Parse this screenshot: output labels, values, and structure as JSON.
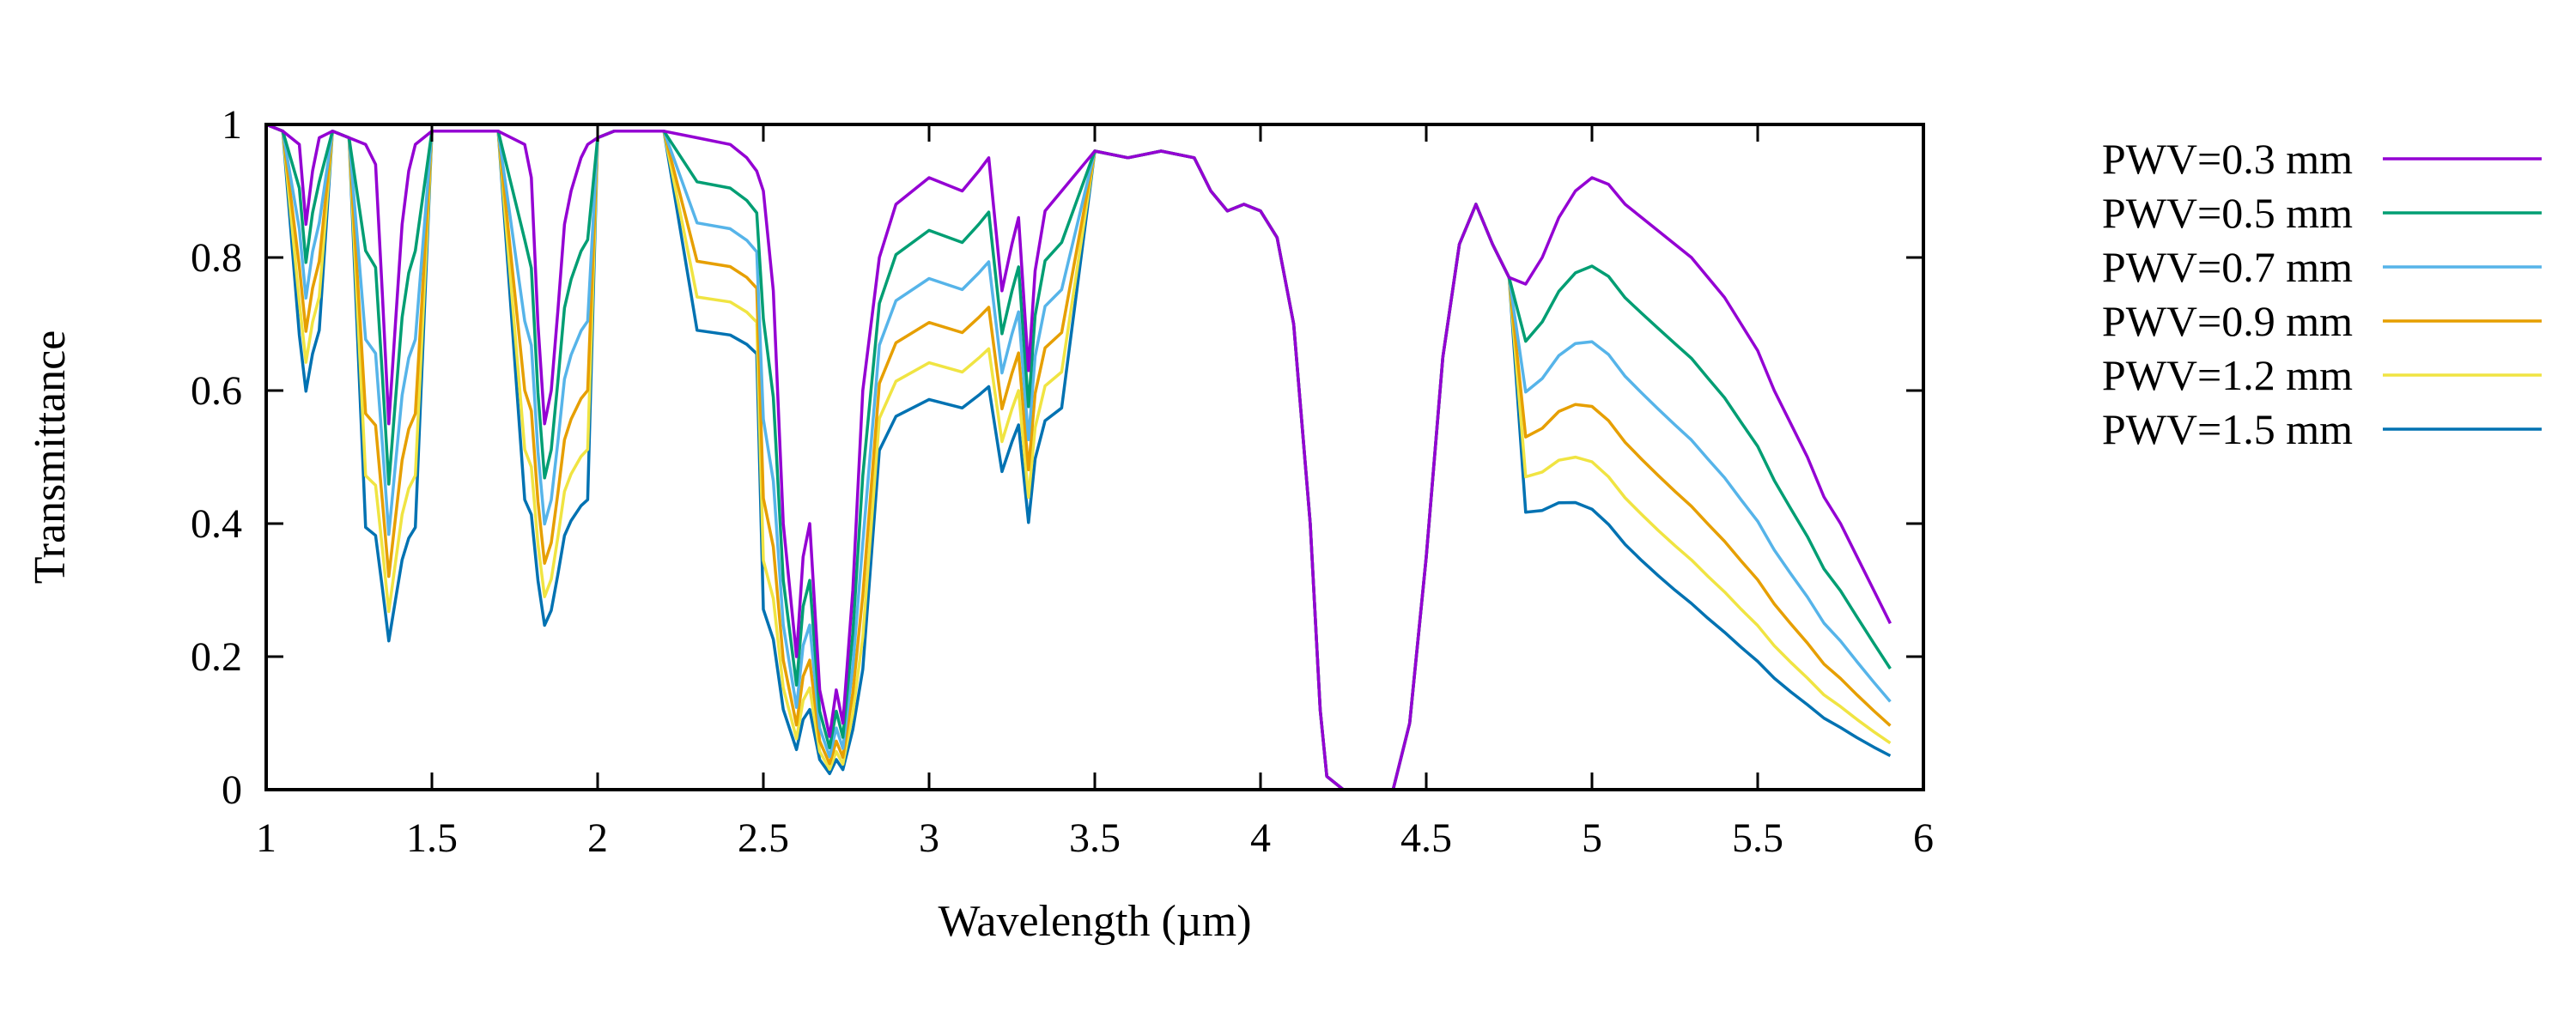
{
  "chart_data": {
    "type": "line",
    "title": "",
    "xlabel": "Wavelength (µm)",
    "ylabel": "Transmittance",
    "xlim": [
      1,
      6
    ],
    "ylim": [
      0,
      1
    ],
    "x_ticks": [
      "1",
      "1.5",
      "2",
      "2.5",
      "3",
      "3.5",
      "4",
      "4.5",
      "5",
      "5.5",
      "6"
    ],
    "y_ticks": [
      "0",
      "0.2",
      "0.4",
      "0.6",
      "0.8",
      "1"
    ],
    "grid": false,
    "legend": "outside-right-top",
    "base": {
      "x": [
        1.0,
        1.05,
        1.1,
        1.12,
        1.14,
        1.16,
        1.2,
        1.25,
        1.3,
        1.33,
        1.35,
        1.37,
        1.39,
        1.41,
        1.43,
        1.45,
        1.5,
        1.6,
        1.7,
        1.78,
        1.8,
        1.82,
        1.84,
        1.86,
        1.88,
        1.9,
        1.92,
        1.95,
        1.97,
        2.0,
        2.05,
        2.1,
        2.2,
        2.3,
        2.4,
        2.45,
        2.48,
        2.5,
        2.53,
        2.56,
        2.6,
        2.62,
        2.64,
        2.67,
        2.7,
        2.72,
        2.74,
        2.77,
        2.8,
        2.85,
        2.9,
        3.0,
        3.1,
        3.15,
        3.18,
        3.2,
        3.22,
        3.25,
        3.27,
        3.3,
        3.32,
        3.35,
        3.4,
        3.5,
        3.6,
        3.7,
        3.8,
        3.85,
        3.9,
        3.95,
        4.0,
        4.05,
        4.1,
        4.15,
        4.18,
        4.2,
        4.25,
        4.3,
        4.35,
        4.4,
        4.45,
        4.5,
        4.55,
        4.6,
        4.65,
        4.7,
        4.75,
        4.8,
        4.85,
        4.9,
        4.95,
        5.0,
        5.05,
        5.1,
        5.15,
        5.2,
        5.25,
        5.3,
        5.35,
        5.4,
        5.45,
        5.5,
        5.55,
        5.6,
        5.65,
        5.7,
        5.75,
        5.8,
        5.85,
        5.9
      ],
      "y": [
        1.0,
        0.99,
        0.97,
        0.85,
        0.93,
        0.98,
        0.99,
        0.98,
        0.97,
        0.94,
        0.75,
        0.55,
        0.7,
        0.85,
        0.93,
        0.97,
        0.99,
        0.99,
        0.99,
        0.97,
        0.92,
        0.7,
        0.55,
        0.6,
        0.72,
        0.85,
        0.9,
        0.95,
        0.97,
        0.98,
        0.99,
        0.99,
        0.99,
        0.98,
        0.97,
        0.95,
        0.93,
        0.9,
        0.75,
        0.4,
        0.2,
        0.35,
        0.4,
        0.15,
        0.08,
        0.15,
        0.1,
        0.3,
        0.6,
        0.8,
        0.88,
        0.92,
        0.9,
        0.93,
        0.95,
        0.85,
        0.75,
        0.82,
        0.86,
        0.63,
        0.78,
        0.87,
        0.9,
        0.96,
        0.95,
        0.96,
        0.95,
        0.9,
        0.87,
        0.88,
        0.87,
        0.83,
        0.7,
        0.4,
        0.12,
        0.02,
        0.0,
        0.0,
        0.0,
        0.0,
        0.1,
        0.35,
        0.65,
        0.82,
        0.88,
        0.82,
        0.77,
        0.76,
        0.8,
        0.86,
        0.9,
        0.92,
        0.91,
        0.88,
        0.86,
        0.84,
        0.82,
        0.8,
        0.77,
        0.74,
        0.7,
        0.66,
        0.6,
        0.55,
        0.5,
        0.44,
        0.4,
        0.35,
        0.3,
        0.25
      ]
    },
    "series": [
      {
        "name": "PWV=0.3 mm",
        "color": "#9400d3",
        "depth": 0.0
      },
      {
        "name": "PWV=0.5 mm",
        "color": "#009e73",
        "depth": 0.2
      },
      {
        "name": "PWV=0.7 mm",
        "color": "#56b4e9",
        "depth": 0.4
      },
      {
        "name": "PWV=0.9 mm",
        "color": "#e69f00",
        "depth": 0.6
      },
      {
        "name": "PWV=1.2 mm",
        "color": "#f0e442",
        "depth": 0.8
      },
      {
        "name": "PWV=1.5 mm",
        "color": "#0072b2",
        "depth": 1.0
      }
    ]
  }
}
